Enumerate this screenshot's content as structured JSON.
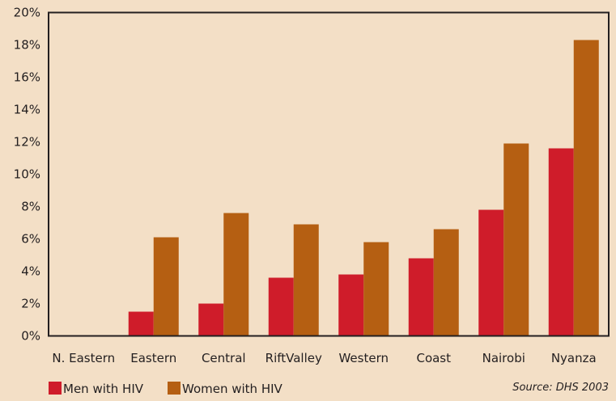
{
  "chart_data": {
    "type": "bar",
    "categories": [
      "N. Eastern",
      "Eastern",
      "Central",
      "RiftValley",
      "Western",
      "Coast",
      "Nairobi",
      "Nyanza"
    ],
    "series": [
      {
        "name": "Men with HIV",
        "values": [
          0,
          1.5,
          2.0,
          3.6,
          3.8,
          4.8,
          7.8,
          11.6
        ],
        "color": "#cf1c2a"
      },
      {
        "name": "Women with HIV",
        "values": [
          0,
          6.1,
          7.6,
          6.9,
          5.8,
          6.6,
          11.9,
          18.3
        ],
        "color": "#b55f12"
      }
    ],
    "ylim": [
      0,
      20
    ],
    "yticks": [
      "0%",
      "2%",
      "4%",
      "6%",
      "8%",
      "10%",
      "12%",
      "14%",
      "16%",
      "18%",
      "20%"
    ],
    "grid": false,
    "legend_position": "bottom-left",
    "source": "Source: DHS 2003"
  }
}
